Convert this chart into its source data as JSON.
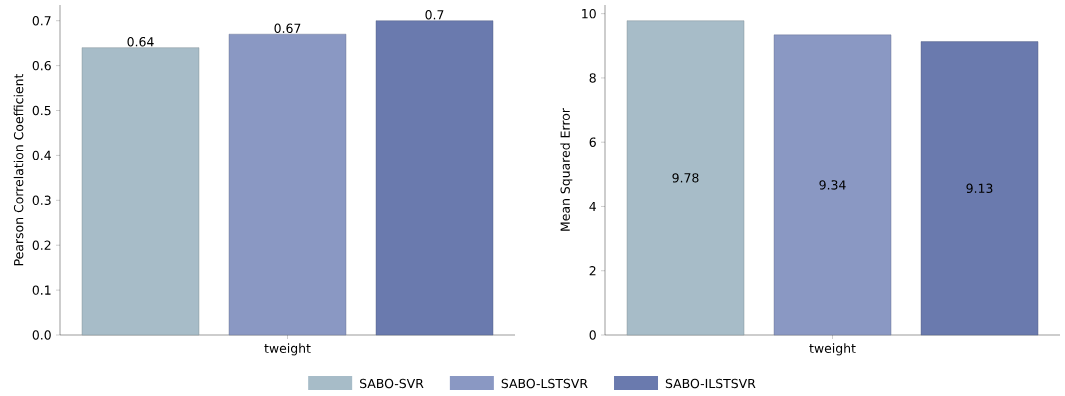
{
  "chart_data": [
    {
      "type": "bar",
      "ylabel": "Pearson Correlation Coefficient",
      "categories": [
        "tweight"
      ],
      "ylim": [
        0,
        0.735
      ],
      "yticks": [
        {
          "value": 0,
          "label": "0.0"
        },
        {
          "value": 0.1,
          "label": "0.1"
        },
        {
          "value": 0.2,
          "label": "0.2"
        },
        {
          "value": 0.3,
          "label": "0.3"
        },
        {
          "value": 0.4,
          "label": "0.4"
        },
        {
          "value": 0.5,
          "label": "0.5"
        },
        {
          "value": 0.6,
          "label": "0.6"
        },
        {
          "value": 0.7,
          "label": "0.7"
        }
      ],
      "data_labels": true,
      "legend": "bottom",
      "series": [
        {
          "name": "SABO-SVR",
          "color": "#a7bcc8",
          "values": [
            0.64
          ]
        },
        {
          "name": "SABO-LSTSVR",
          "color": "#8a98c3",
          "values": [
            0.67
          ]
        },
        {
          "name": "SABO-ILSTSVR",
          "color": "#6a7aae",
          "values": [
            0.7
          ]
        }
      ]
    },
    {
      "type": "bar",
      "ylabel": "Mean Squared Error",
      "categories": [
        "tweight"
      ],
      "ylim": [
        0,
        10.269
      ],
      "yticks": [
        0,
        2,
        4,
        6,
        8,
        10
      ],
      "data_labels": true,
      "series": [
        {
          "color": "#a7bcc8",
          "values": [
            9.78
          ]
        },
        {
          "color": "#8a98c3",
          "values": [
            9.34
          ]
        },
        {
          "color": "#6a7aae",
          "values": [
            9.13
          ]
        }
      ]
    }
  ]
}
